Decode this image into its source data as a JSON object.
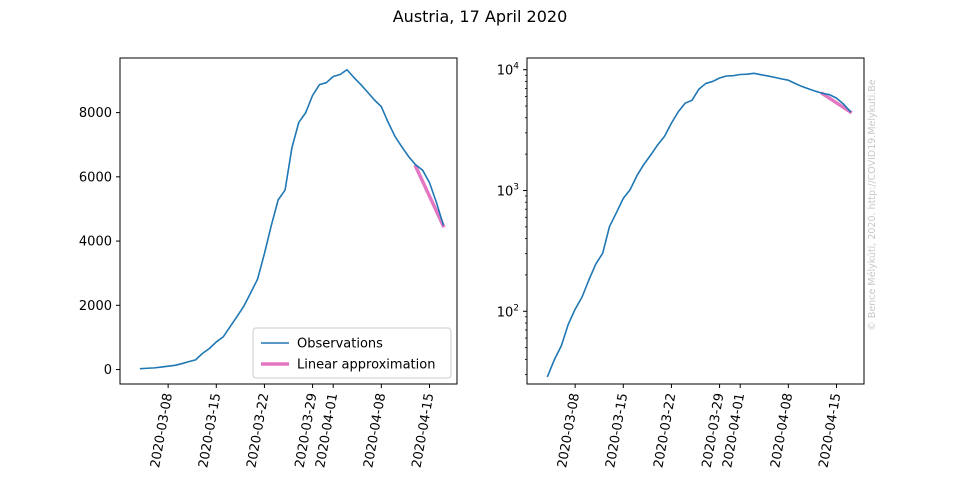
{
  "figure": {
    "title": "Austria, 17 April 2020",
    "watermark": "© Bence Mélykúti, 2020. http://COVID19.Melykuti.Be"
  },
  "colors": {
    "observations": "#1f77b4",
    "fit": "#e377c2",
    "axes": "#000000"
  },
  "chart_data": [
    {
      "type": "line",
      "yscale": "linear",
      "ylim": [
        -450,
        9700
      ],
      "yticks": [
        0,
        2000,
        4000,
        6000,
        8000
      ],
      "ytick_labels": [
        "0",
        "2000",
        "4000",
        "6000",
        "8000"
      ],
      "xlim": [
        "2020-03-01",
        "2020-04-19"
      ],
      "xticks": [
        "2020-03-08",
        "2020-03-15",
        "2020-03-22",
        "2020-03-29",
        "2020-04-01",
        "2020-04-08",
        "2020-04-15"
      ],
      "legend": {
        "position": "lower-right",
        "entries": [
          {
            "label": "Observations",
            "series": "observations"
          },
          {
            "label": "Linear approximation",
            "series": "fit"
          }
        ]
      },
      "series": [
        {
          "name": "Observations",
          "key": "observations",
          "x": [
            "2020-03-04",
            "2020-03-05",
            "2020-03-06",
            "2020-03-07",
            "2020-03-08",
            "2020-03-09",
            "2020-03-10",
            "2020-03-11",
            "2020-03-12",
            "2020-03-13",
            "2020-03-14",
            "2020-03-15",
            "2020-03-16",
            "2020-03-17",
            "2020-03-18",
            "2020-03-19",
            "2020-03-20",
            "2020-03-21",
            "2020-03-22",
            "2020-03-23",
            "2020-03-24",
            "2020-03-25",
            "2020-03-26",
            "2020-03-27",
            "2020-03-28",
            "2020-03-29",
            "2020-03-30",
            "2020-03-31",
            "2020-04-01",
            "2020-04-02",
            "2020-04-03",
            "2020-04-04",
            "2020-04-05",
            "2020-04-06",
            "2020-04-07",
            "2020-04-08",
            "2020-04-09",
            "2020-04-10",
            "2020-04-11",
            "2020-04-12",
            "2020-04-13",
            "2020-04-14",
            "2020-04-15",
            "2020-04-16",
            "2020-04-17"
          ],
          "y": [
            29,
            40,
            52,
            78,
            104,
            131,
            182,
            246,
            302,
            504,
            655,
            860,
            1016,
            1332,
            1646,
            1971,
            2388,
            2814,
            3611,
            4486,
            5283,
            5588,
            6909,
            7697,
            7995,
            8536,
            8870,
            8931,
            9125,
            9187,
            9334,
            9096,
            8876,
            8637,
            8392,
            8184,
            7691,
            7254,
            6926,
            6622,
            6371,
            6207,
            5820,
            5204,
            4512
          ]
        },
        {
          "name": "Linear approximation",
          "key": "fit",
          "x": [
            "2020-04-13",
            "2020-04-17"
          ],
          "y": [
            6320,
            4480
          ]
        }
      ]
    },
    {
      "type": "line",
      "yscale": "log",
      "ylim": [
        25,
        12500
      ],
      "yticks": [
        100,
        1000,
        10000
      ],
      "ytick_labels": [
        {
          "base": "10",
          "exp": "2"
        },
        {
          "base": "10",
          "exp": "3"
        },
        {
          "base": "10",
          "exp": "4"
        }
      ],
      "xlim": [
        "2020-03-01",
        "2020-04-19"
      ],
      "xticks": [
        "2020-03-08",
        "2020-03-15",
        "2020-03-22",
        "2020-03-29",
        "2020-04-01",
        "2020-04-08",
        "2020-04-15"
      ],
      "series": [
        {
          "name": "Observations",
          "key": "observations",
          "x": [
            "2020-03-04",
            "2020-03-05",
            "2020-03-06",
            "2020-03-07",
            "2020-03-08",
            "2020-03-09",
            "2020-03-10",
            "2020-03-11",
            "2020-03-12",
            "2020-03-13",
            "2020-03-14",
            "2020-03-15",
            "2020-03-16",
            "2020-03-17",
            "2020-03-18",
            "2020-03-19",
            "2020-03-20",
            "2020-03-21",
            "2020-03-22",
            "2020-03-23",
            "2020-03-24",
            "2020-03-25",
            "2020-03-26",
            "2020-03-27",
            "2020-03-28",
            "2020-03-29",
            "2020-03-30",
            "2020-03-31",
            "2020-04-01",
            "2020-04-02",
            "2020-04-03",
            "2020-04-04",
            "2020-04-05",
            "2020-04-06",
            "2020-04-07",
            "2020-04-08",
            "2020-04-09",
            "2020-04-10",
            "2020-04-11",
            "2020-04-12",
            "2020-04-13",
            "2020-04-14",
            "2020-04-15",
            "2020-04-16",
            "2020-04-17"
          ],
          "y": [
            29,
            40,
            52,
            78,
            104,
            131,
            182,
            246,
            302,
            504,
            655,
            860,
            1016,
            1332,
            1646,
            1971,
            2388,
            2814,
            3611,
            4486,
            5283,
            5588,
            6909,
            7697,
            7995,
            8536,
            8870,
            8931,
            9125,
            9187,
            9334,
            9096,
            8876,
            8637,
            8392,
            8184,
            7691,
            7254,
            6926,
            6622,
            6371,
            6207,
            5820,
            5204,
            4512
          ]
        },
        {
          "name": "Linear approximation",
          "key": "fit",
          "x": [
            "2020-04-13",
            "2020-04-17"
          ],
          "y": [
            6320,
            4480
          ]
        }
      ]
    }
  ]
}
